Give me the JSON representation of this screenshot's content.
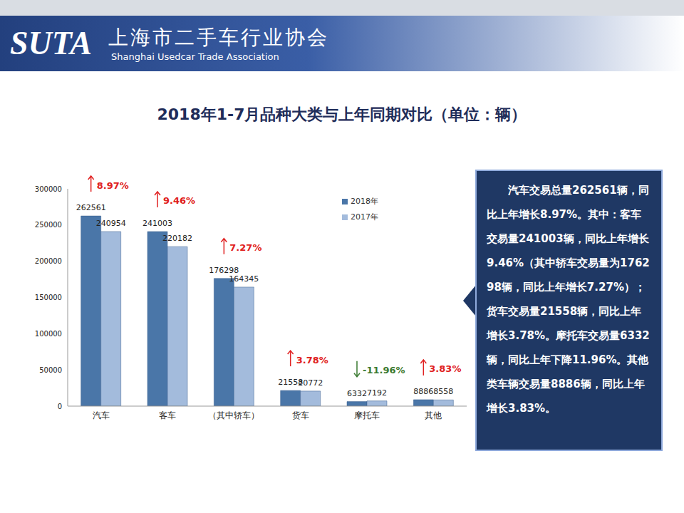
{
  "header": {
    "logo": "SUTA",
    "name": "上海市二手车行业协会",
    "name_en": "Shanghai Usedcar Trade Association"
  },
  "chart_data": {
    "type": "bar",
    "title": "2018年1-7月品种大类与上年同期对比（单位：辆）",
    "categories": [
      "汽车",
      "客车",
      "（其中轿车）",
      "货车",
      "摩托车",
      "其他"
    ],
    "series": [
      {
        "name": "2018年",
        "color": "#4a76a8",
        "values": [
          262561,
          241003,
          176298,
          21558,
          6332,
          8886
        ]
      },
      {
        "name": "2017年",
        "color": "#a3bbdc",
        "values": [
          240954,
          220182,
          164345,
          20772,
          7192,
          8558
        ]
      }
    ],
    "ylim": [
      0,
      300000
    ],
    "yticks": [
      0,
      50000,
      100000,
      150000,
      200000,
      250000,
      300000
    ],
    "grid": false,
    "legend": "upper right",
    "data_labels": true,
    "annotations": {
      "values": [
        8.97,
        9.46,
        7.27,
        3.78,
        -11.96,
        3.83
      ],
      "value_labels": [
        "8.97%",
        "9.46%",
        "7.27%",
        "3.78%",
        "-11.96%",
        "3.83%"
      ]
    }
  },
  "text_box": "汽车交易总量262561辆，同比上年增长8.97%。其中：客车交易量241003辆，同比上年增长9.46%（其中轿车交易量为176298辆，同比上年增长7.27%）；货车交易量21558辆，同比上年增长3.78%。摩托车交易量6332辆，同比上年下降11.96%。其他类车辆交易量8886辆，同比上年增长3.83%。"
}
